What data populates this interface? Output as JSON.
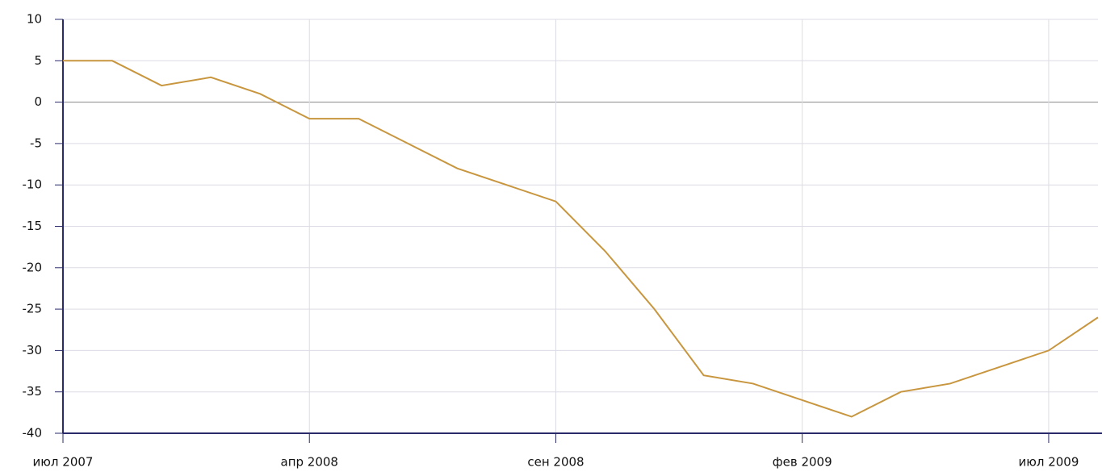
{
  "chart_data": {
    "type": "line",
    "categories": [
      "июл 2007",
      null,
      null,
      null,
      null,
      "апр 2008",
      null,
      null,
      null,
      null,
      "сен 2008",
      null,
      null,
      null,
      null,
      "фев 2009",
      null,
      null,
      null,
      null,
      "июл 2009",
      null
    ],
    "values": [
      5,
      5,
      2,
      3,
      1,
      -2,
      -2,
      -5,
      -8,
      -10,
      -12,
      -18,
      -25,
      -33,
      -34,
      -36,
      -38,
      -35,
      -34,
      -32,
      -30,
      -26
    ],
    "color": "#c8963e",
    "ylim": [
      -40,
      10
    ],
    "yticks": [
      -40,
      -35,
      -30,
      -25,
      -20,
      -15,
      -10,
      -5,
      0,
      5,
      10
    ],
    "grid": true
  }
}
